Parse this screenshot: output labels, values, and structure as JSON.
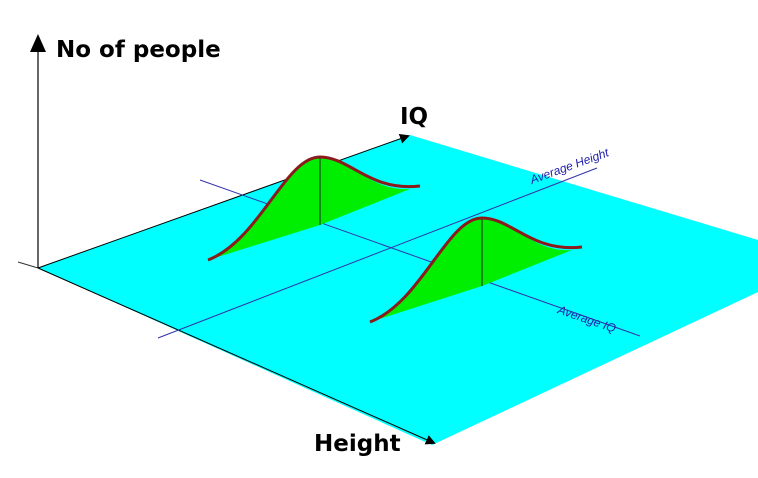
{
  "axes": {
    "vertical": "No of people",
    "depth": "IQ",
    "horizontal": "Height"
  },
  "guides": {
    "average_height": "Average Height",
    "average_iq": "Average IQ"
  }
}
